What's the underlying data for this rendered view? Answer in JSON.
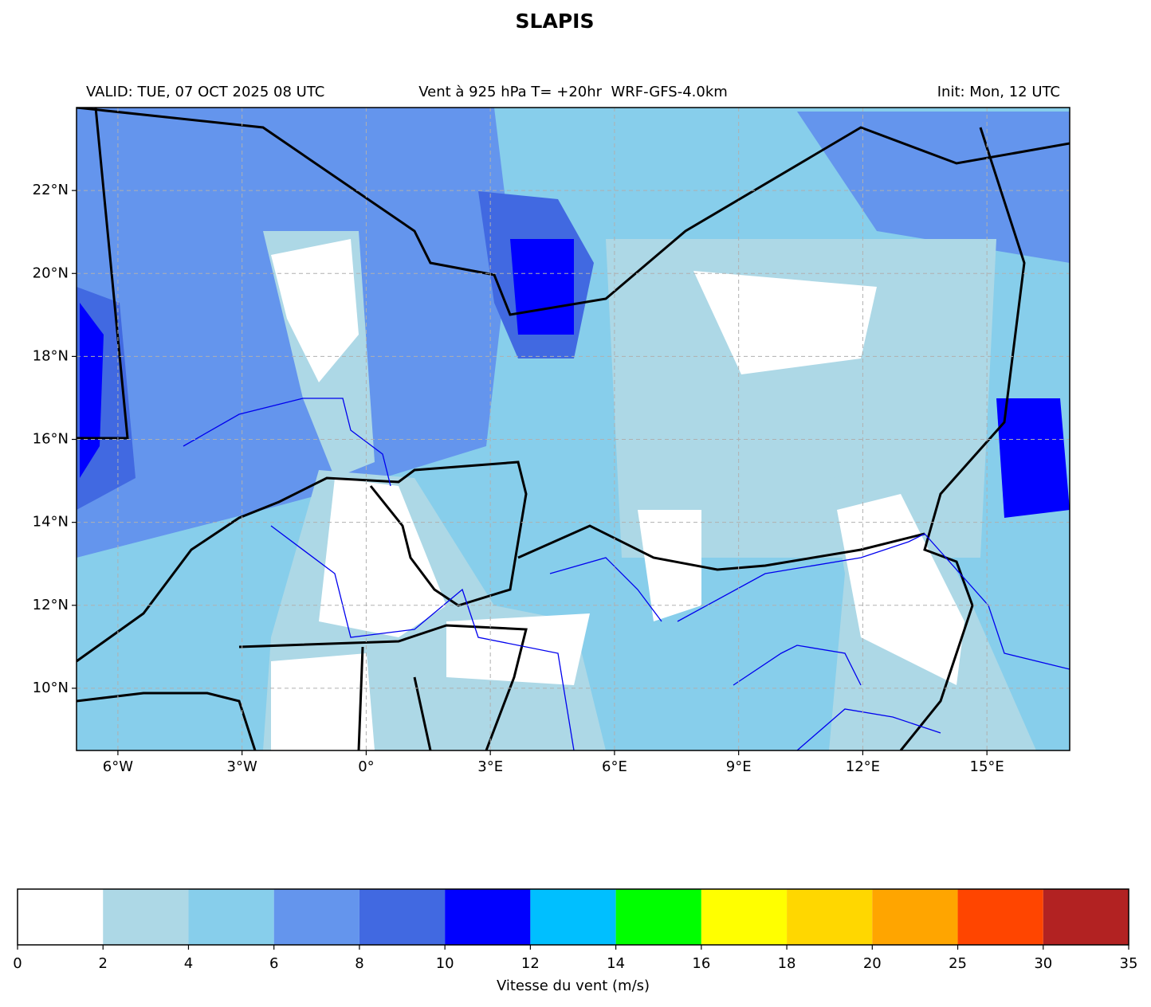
{
  "title": "SLAPIS",
  "header": {
    "left": "VALID: TUE, 07 OCT 2025 08 UTC",
    "center": "Vent à 925 hPa T= +20hr  WRF-GFS-4.0km",
    "right": "Init: Mon, 12 UTC"
  },
  "map": {
    "xlim": [
      -7,
      17
    ],
    "ylim": [
      8.5,
      24
    ],
    "xticks": [
      {
        "value": -6,
        "label": "6°W"
      },
      {
        "value": -3,
        "label": "3°W"
      },
      {
        "value": 0,
        "label": "0°"
      },
      {
        "value": 3,
        "label": "3°E"
      },
      {
        "value": 6,
        "label": "6°E"
      },
      {
        "value": 9,
        "label": "9°E"
      },
      {
        "value": 12,
        "label": "12°E"
      },
      {
        "value": 15,
        "label": "15°E"
      }
    ],
    "yticks": [
      {
        "value": 10,
        "label": "10°N"
      },
      {
        "value": 12,
        "label": "12°N"
      },
      {
        "value": 14,
        "label": "14°N"
      },
      {
        "value": 16,
        "label": "16°N"
      },
      {
        "value": 18,
        "label": "18°N"
      },
      {
        "value": 20,
        "label": "20°N"
      },
      {
        "value": 22,
        "label": "22°N"
      }
    ],
    "grid": true
  },
  "colorbar": {
    "label": "Vitesse du vent (m/s)",
    "levels": [
      0,
      2,
      4,
      6,
      8,
      10,
      12,
      14,
      16,
      18,
      20,
      25,
      30,
      35
    ],
    "colors": [
      "#ffffff",
      "#add8e6",
      "#87ceeb",
      "#6495ed",
      "#4169e1",
      "#0000ff",
      "#00bfff",
      "#00ff00",
      "#ffff00",
      "#ffd700",
      "#ffa500",
      "#ff4500",
      "#b22222"
    ]
  }
}
